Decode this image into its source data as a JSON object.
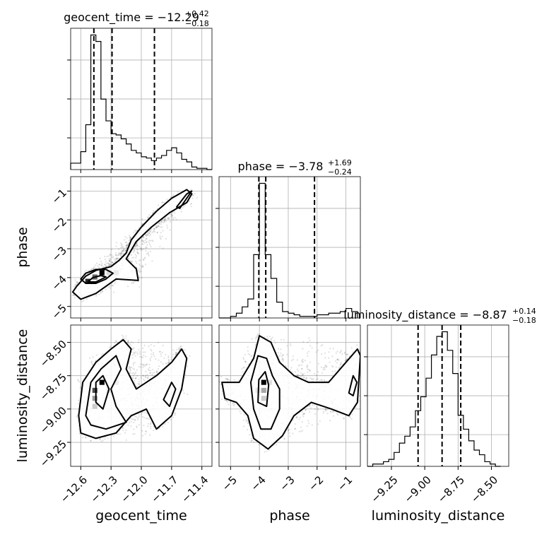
{
  "chart_data": [
    {
      "type": "corner",
      "parameters": [
        "geocent_time",
        "phase",
        "luminosity_distance"
      ],
      "titles": {
        "geocent_time": {
          "base": "geocent_time = −12.29",
          "sup": "+0.42",
          "sub": "−0.18"
        },
        "phase": {
          "base": "phase = −3.78",
          "sup": "+1.69",
          "sub": "−0.24"
        },
        "luminosity_distance": {
          "base": "luminosity_distance = −8.87",
          "sup": "+0.14",
          "sub": "−0.18"
        }
      },
      "axis_labels": {
        "x": [
          "geocent_time",
          "phase",
          "luminosity_distance"
        ],
        "y": [
          "phase",
          "luminosity_distance"
        ]
      },
      "ranges": {
        "geocent_time": [
          -12.7,
          -11.3
        ],
        "phase": [
          -5.4,
          -0.5
        ],
        "luminosity_distance": [
          -9.43,
          -8.37
        ]
      },
      "ticks": {
        "geocent_time": [
          -12.6,
          -12.3,
          -12.0,
          -11.7,
          -11.4
        ],
        "phase": [
          -5,
          -4,
          -3,
          -2,
          -1
        ],
        "luminosity_distance": [
          -9.25,
          -9.0,
          -8.75,
          -8.5
        ]
      },
      "tick_labels": {
        "geocent_time": [
          "−12.6",
          "−12.3",
          "−12.0",
          "−11.7",
          "−11.4"
        ],
        "phase": [
          "−5",
          "−4",
          "−3",
          "−2",
          "−1"
        ],
        "luminosity_distance": [
          "−9.25",
          "−9.00",
          "−8.75",
          "−8.50"
        ]
      },
      "grid": true
    },
    {
      "type": "histogram",
      "name": "geocent_time",
      "bin_edges": [
        -12.7,
        -12.65,
        -12.6,
        -12.55,
        -12.5,
        -12.45,
        -12.4,
        -12.35,
        -12.3,
        -12.25,
        -12.2,
        -12.15,
        -12.1,
        -12.05,
        -12.0,
        -11.95,
        -11.9,
        -11.85,
        -11.8,
        -11.75,
        -11.7,
        -11.65,
        -11.6,
        -11.55,
        -11.5,
        -11.45,
        -11.4,
        -11.35,
        -11.3
      ],
      "counts": [
        5,
        5,
        14,
        35,
        105,
        100,
        55,
        38,
        28,
        27,
        24,
        20,
        15,
        13,
        10,
        9,
        7,
        9,
        11,
        15,
        17,
        13,
        8,
        6,
        2,
        1,
        1,
        0
      ],
      "quantiles": [
        -12.47,
        -12.29,
        -11.87
      ]
    },
    {
      "type": "histogram",
      "name": "phase",
      "bin_edges": [
        -5.4,
        -5.2,
        -5.0,
        -4.8,
        -4.6,
        -4.4,
        -4.2,
        -4.0,
        -3.8,
        -3.6,
        -3.4,
        -3.2,
        -3.0,
        -2.8,
        -2.6,
        -2.4,
        -2.2,
        -2.0,
        -1.8,
        -1.6,
        -1.4,
        -1.2,
        -1.0,
        -0.8,
        -0.6
      ],
      "counts": [
        0,
        0,
        1,
        3,
        7,
        12,
        40,
        85,
        40,
        25,
        10,
        4,
        3,
        2,
        1,
        1,
        1,
        2,
        2,
        3,
        3,
        4,
        6,
        4
      ],
      "quantiles": [
        -4.02,
        -3.78,
        -2.09
      ]
    },
    {
      "type": "histogram",
      "name": "luminosity_distance",
      "bin_edges": [
        -9.43,
        -9.39,
        -9.35,
        -9.31,
        -9.27,
        -9.23,
        -9.19,
        -9.15,
        -9.11,
        -9.07,
        -9.03,
        -8.99,
        -8.95,
        -8.91,
        -8.87,
        -8.83,
        -8.79,
        -8.75,
        -8.71,
        -8.67,
        -8.63,
        -8.59,
        -8.55,
        -8.51,
        -8.47,
        -8.43
      ],
      "counts": [
        0,
        1,
        1,
        2,
        3,
        6,
        10,
        13,
        17,
        24,
        30,
        38,
        48,
        56,
        58,
        50,
        40,
        22,
        16,
        11,
        7,
        5,
        2,
        1,
        0
      ],
      "quantiles": [
        -9.05,
        -8.87,
        -8.73
      ]
    },
    {
      "type": "heatmap",
      "name": "phase vs geocent_time",
      "peak": [
        -12.39,
        -3.83
      ],
      "dark_cells": [
        [
          -12.39,
          -3.83,
          1.0
        ],
        [
          -12.53,
          -4.13,
          0.85
        ],
        [
          -12.46,
          -3.98,
          0.6
        ],
        [
          -12.32,
          -3.83,
          0.15
        ],
        [
          -12.25,
          -3.83,
          0.08
        ]
      ],
      "contours": [
        [
          [
            -12.64,
            -4.3
          ],
          [
            -12.55,
            -3.95
          ],
          [
            -12.45,
            -3.75
          ],
          [
            -12.3,
            -3.62
          ],
          [
            -12.22,
            -3.4
          ],
          [
            -12.15,
            -3.15
          ],
          [
            -12.1,
            -2.7
          ],
          [
            -12.0,
            -2.25
          ],
          [
            -11.85,
            -1.7
          ],
          [
            -11.7,
            -1.25
          ],
          [
            -11.55,
            -0.95
          ],
          [
            -11.5,
            -1.1
          ],
          [
            -11.55,
            -1.4
          ],
          [
            -11.72,
            -1.75
          ],
          [
            -11.9,
            -2.25
          ],
          [
            -12.05,
            -2.75
          ],
          [
            -12.15,
            -3.35
          ],
          [
            -12.05,
            -3.7
          ],
          [
            -12.03,
            -4.1
          ],
          [
            -12.25,
            -4.05
          ],
          [
            -12.45,
            -4.55
          ],
          [
            -12.6,
            -4.75
          ],
          [
            -12.68,
            -4.5
          ]
        ],
        [
          [
            -12.6,
            -4.05
          ],
          [
            -12.55,
            -3.85
          ],
          [
            -12.45,
            -3.72
          ],
          [
            -12.35,
            -3.72
          ],
          [
            -12.28,
            -3.85
          ],
          [
            -12.35,
            -4.05
          ],
          [
            -12.45,
            -4.2
          ],
          [
            -12.55,
            -4.2
          ]
        ],
        [
          [
            -12.53,
            -4.15
          ],
          [
            -12.48,
            -4.0
          ],
          [
            -12.4,
            -3.93
          ],
          [
            -12.35,
            -3.98
          ],
          [
            -12.45,
            -4.15
          ]
        ],
        [
          [
            -11.65,
            -1.55
          ],
          [
            -11.55,
            -1.1
          ],
          [
            -11.5,
            -1.0
          ],
          [
            -11.55,
            -1.25
          ],
          [
            -11.62,
            -1.6
          ]
        ]
      ],
      "scatter_seed": 1
    },
    {
      "type": "heatmap",
      "name": "luminosity_distance vs geocent_time",
      "peak": [
        -12.39,
        -8.8
      ],
      "dark_cells": [
        [
          -12.39,
          -8.8,
          1.0
        ],
        [
          -12.46,
          -8.86,
          0.7
        ],
        [
          -12.46,
          -8.92,
          0.4
        ],
        [
          -12.46,
          -8.98,
          0.2
        ],
        [
          -12.32,
          -8.86,
          0.1
        ],
        [
          -12.25,
          -8.8,
          0.08
        ]
      ],
      "contours": [
        [
          [
            -12.62,
            -9.05
          ],
          [
            -12.58,
            -8.8
          ],
          [
            -12.45,
            -8.65
          ],
          [
            -12.3,
            -8.55
          ],
          [
            -12.18,
            -8.48
          ],
          [
            -12.1,
            -8.55
          ],
          [
            -12.15,
            -8.7
          ],
          [
            -12.05,
            -8.85
          ],
          [
            -11.85,
            -8.75
          ],
          [
            -11.7,
            -8.65
          ],
          [
            -11.6,
            -8.55
          ],
          [
            -11.55,
            -8.62
          ],
          [
            -11.6,
            -8.85
          ],
          [
            -11.7,
            -9.05
          ],
          [
            -11.85,
            -9.15
          ],
          [
            -11.95,
            -9.0
          ],
          [
            -12.1,
            -9.05
          ],
          [
            -12.25,
            -9.18
          ],
          [
            -12.45,
            -9.22
          ],
          [
            -12.6,
            -9.18
          ]
        ],
        [
          [
            -12.55,
            -9.05
          ],
          [
            -12.5,
            -8.8
          ],
          [
            -12.4,
            -8.7
          ],
          [
            -12.25,
            -8.6
          ],
          [
            -12.2,
            -8.7
          ],
          [
            -12.3,
            -8.85
          ],
          [
            -12.25,
            -8.98
          ],
          [
            -12.15,
            -9.1
          ],
          [
            -12.35,
            -9.15
          ],
          [
            -12.5,
            -9.12
          ]
        ],
        [
          [
            -12.45,
            -8.95
          ],
          [
            -12.45,
            -8.8
          ],
          [
            -12.38,
            -8.75
          ],
          [
            -12.32,
            -8.85
          ],
          [
            -12.38,
            -9.0
          ]
        ],
        [
          [
            -11.78,
            -8.93
          ],
          [
            -11.7,
            -8.8
          ],
          [
            -11.66,
            -8.85
          ],
          [
            -11.72,
            -8.98
          ]
        ]
      ],
      "scatter_seed": 2
    },
    {
      "type": "heatmap",
      "name": "luminosity_distance vs phase",
      "peak": [
        -3.85,
        -8.8
      ],
      "dark_cells": [
        [
          -3.85,
          -8.8,
          1.0
        ],
        [
          -3.85,
          -8.86,
          0.35
        ],
        [
          -3.85,
          -8.92,
          0.2
        ],
        [
          -3.65,
          -8.8,
          0.12
        ],
        [
          -4.05,
          -8.86,
          0.1
        ]
      ],
      "contours": [
        [
          [
            -5.3,
            -8.8
          ],
          [
            -4.7,
            -8.8
          ],
          [
            -4.2,
            -8.62
          ],
          [
            -4.0,
            -8.45
          ],
          [
            -3.6,
            -8.5
          ],
          [
            -3.3,
            -8.65
          ],
          [
            -2.8,
            -8.75
          ],
          [
            -2.3,
            -8.8
          ],
          [
            -1.6,
            -8.8
          ],
          [
            -1.0,
            -8.65
          ],
          [
            -0.6,
            -8.55
          ],
          [
            -0.5,
            -8.6
          ],
          [
            -0.6,
            -8.95
          ],
          [
            -0.9,
            -9.05
          ],
          [
            -1.5,
            -9.0
          ],
          [
            -2.2,
            -8.95
          ],
          [
            -2.8,
            -9.05
          ],
          [
            -3.2,
            -9.2
          ],
          [
            -3.7,
            -9.3
          ],
          [
            -4.2,
            -9.22
          ],
          [
            -4.4,
            -9.05
          ],
          [
            -4.8,
            -8.95
          ],
          [
            -5.2,
            -8.92
          ]
        ],
        [
          [
            -4.2,
            -9.0
          ],
          [
            -4.3,
            -8.8
          ],
          [
            -4.05,
            -8.6
          ],
          [
            -3.75,
            -8.62
          ],
          [
            -3.55,
            -8.75
          ],
          [
            -3.3,
            -8.85
          ],
          [
            -3.3,
            -9.0
          ],
          [
            -3.6,
            -9.15
          ],
          [
            -3.95,
            -9.15
          ]
        ],
        [
          [
            -4.05,
            -8.95
          ],
          [
            -4.02,
            -8.78
          ],
          [
            -3.8,
            -8.72
          ],
          [
            -3.68,
            -8.82
          ],
          [
            -3.75,
            -8.98
          ]
        ],
        [
          [
            -0.9,
            -8.88
          ],
          [
            -0.75,
            -8.75
          ],
          [
            -0.62,
            -8.8
          ],
          [
            -0.75,
            -8.9
          ]
        ]
      ],
      "scatter_seed": 3
    }
  ]
}
